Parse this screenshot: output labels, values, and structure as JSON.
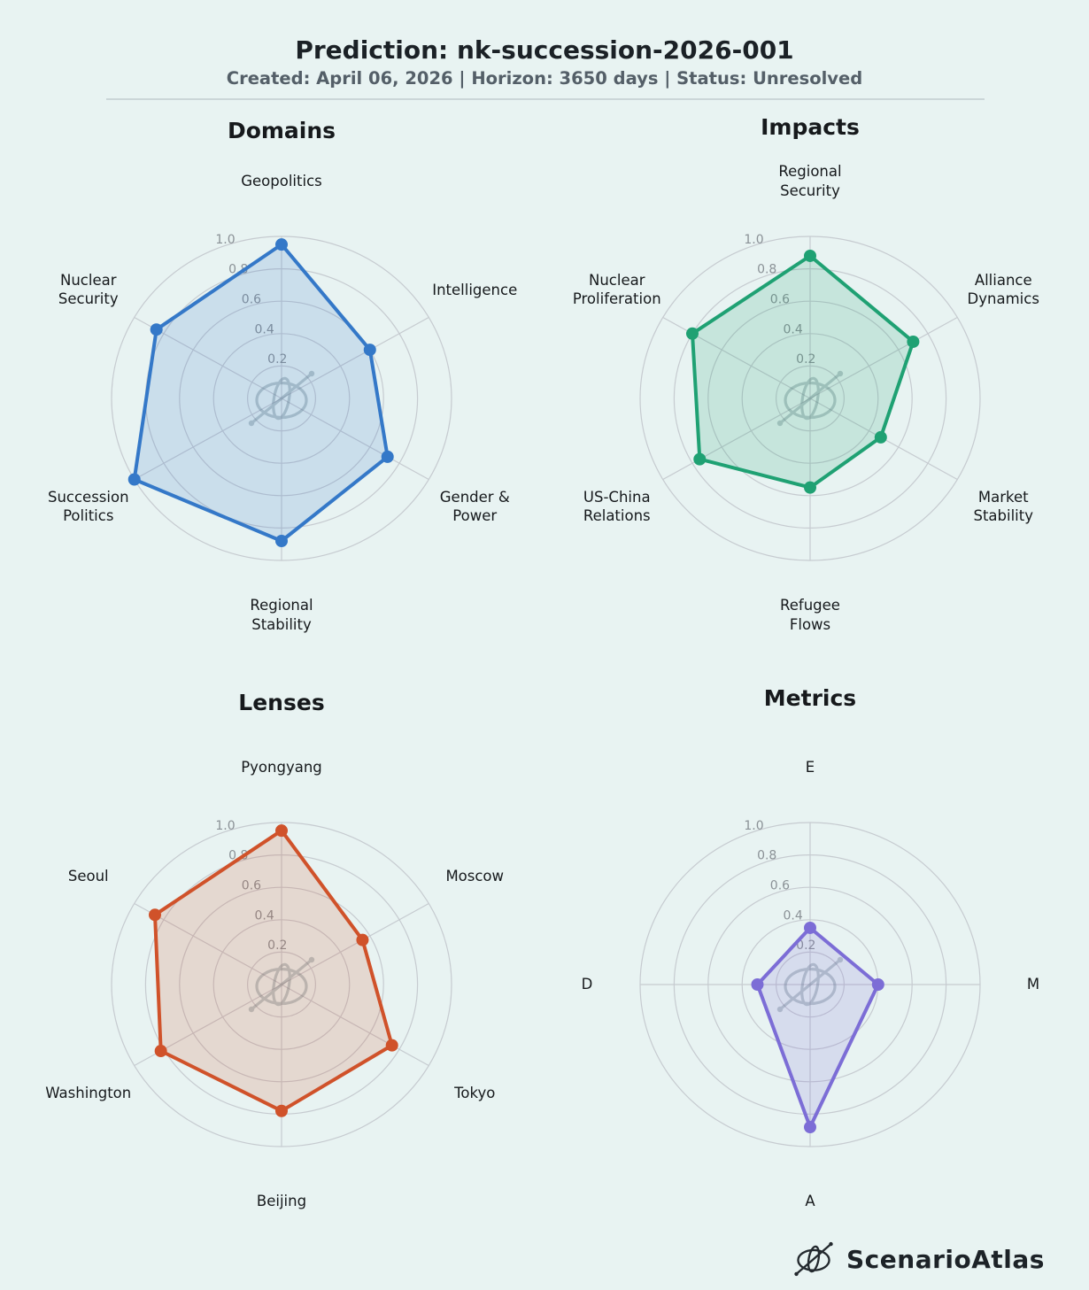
{
  "header": {
    "title": "Prediction: nk-succession-2026-001",
    "subtitle": "Created: April 06, 2026  |  Horizon: 3650 days  |  Status: Unresolved"
  },
  "chart_data": [
    {
      "type": "radar",
      "title": "Domains",
      "color": "#3478c8",
      "categories": [
        "Geopolitics",
        "Intelligence",
        "Gender &\nPower",
        "Regional\nStability",
        "Succession\nPolitics",
        "Nuclear\nSecurity"
      ],
      "values": [
        0.95,
        0.6,
        0.72,
        0.88,
        1.0,
        0.85
      ],
      "rlim": [
        0,
        1
      ],
      "rticks": [
        0.2,
        0.4,
        0.6,
        0.8,
        1.0
      ],
      "grid": true,
      "legend": "none"
    },
    {
      "type": "radar",
      "title": "Impacts",
      "color": "#1fa173",
      "categories": [
        "Regional\nSecurity",
        "Alliance\nDynamics",
        "Market\nStability",
        "Refugee\nFlows",
        "US-China\nRelations",
        "Nuclear\nProliferation"
      ],
      "values": [
        0.88,
        0.7,
        0.48,
        0.55,
        0.75,
        0.8
      ],
      "rlim": [
        0,
        1
      ],
      "rticks": [
        0.2,
        0.4,
        0.6,
        0.8,
        1.0
      ],
      "grid": true,
      "legend": "none"
    },
    {
      "type": "radar",
      "title": "Lenses",
      "color": "#d0522a",
      "categories": [
        "Pyongyang",
        "Moscow",
        "Tokyo",
        "Beijing",
        "Washington",
        "Seoul"
      ],
      "values": [
        0.95,
        0.55,
        0.75,
        0.78,
        0.82,
        0.86
      ],
      "rlim": [
        0,
        1
      ],
      "rticks": [
        0.2,
        0.4,
        0.6,
        0.8,
        1.0
      ],
      "grid": true,
      "legend": "none"
    },
    {
      "type": "radar",
      "title": "Metrics",
      "color": "#7c6dd6",
      "categories": [
        "E",
        "M",
        "A",
        "D"
      ],
      "values": [
        0.35,
        0.4,
        0.88,
        0.31
      ],
      "rlim": [
        0,
        1
      ],
      "rticks": [
        0.2,
        0.4,
        0.6,
        0.8,
        1.0
      ],
      "grid": true,
      "legend": "none"
    }
  ],
  "footer": {
    "brand": "ScenarioAtlas"
  },
  "colors": {
    "background": "#e8f3f2",
    "grid": "#c6cbd0",
    "tick_text": "#8a9196",
    "axis_text": "#16191c",
    "watermark": "#5f7880",
    "divider": "#cbd6d8"
  }
}
